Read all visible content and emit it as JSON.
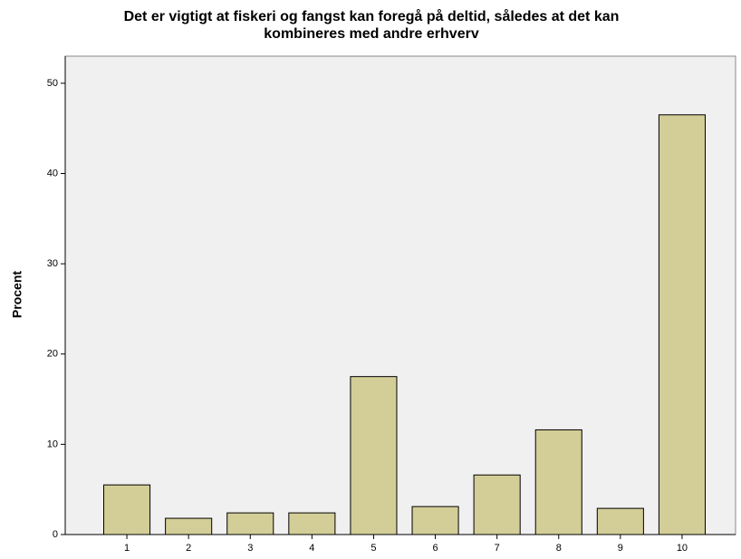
{
  "chart_data": {
    "type": "bar",
    "title": [
      "Det er vigtigt at fiskeri og fangst kan foregå på deltid, således at det kan",
      "kombineres med andre erhverv"
    ],
    "y_label": "Procent",
    "categories": [
      "1",
      "2",
      "3",
      "4",
      "5",
      "6",
      "7",
      "8",
      "9",
      "10"
    ],
    "values": [
      5.5,
      1.8,
      2.4,
      2.4,
      17.5,
      3.1,
      6.6,
      11.6,
      2.9,
      46.5
    ],
    "color": "#d3ce97",
    "ylim": [
      0,
      53
    ],
    "yticks": [
      0,
      10,
      20,
      30,
      40,
      50
    ],
    "grid": false
  }
}
